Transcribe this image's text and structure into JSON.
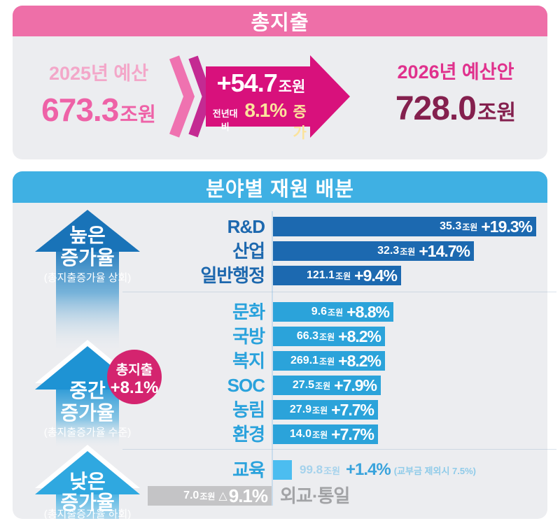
{
  "colors": {
    "pink_header": "#ee6fa8",
    "magenta_arrow": "#d8117c",
    "chevron_light_pink": "#ef72b0",
    "chevron_deep_magenta": "#c42a92",
    "budget_2025_label": "#f3a7c9",
    "budget_2025_value": "#ee62a7",
    "budget_2026_label": "#e0318d",
    "budget_2026_value": "#84204e",
    "highlight_yellow": "#fbe39c",
    "blue_header": "#3fb0e3",
    "bar_dark_blue": "#1c69b0",
    "bar_light_blue": "#2ba3da",
    "bar_sky_blue": "#4cbdf0",
    "bar_gray": "#c4c4c6",
    "badge_magenta": "#d4246f",
    "card_background": "#ecedf0"
  },
  "top_card": {
    "title": "총지출",
    "budget_2025": {
      "label": "2025년 예산",
      "value": "673.3",
      "unit": "조원"
    },
    "change": {
      "amount": "+54.7",
      "amount_unit": "조원",
      "prefix": "전년대비",
      "percent": "8.1%",
      "suffix": "증가"
    },
    "budget_2026": {
      "label": "2026년 예산안",
      "value": "728.0",
      "unit": "조원"
    }
  },
  "chart_card": {
    "title": "분야별 재원 배분",
    "badge": {
      "line1": "총지출",
      "line2": "+8.1%"
    },
    "side_labels": [
      {
        "line1": "높은",
        "line2": "증가율",
        "note": "(총지출증가율 상회)"
      },
      {
        "line1": "중간",
        "line2": "증가율",
        "note": "(총지출증가율 수준)"
      },
      {
        "line1": "낮은",
        "line2": "증가율",
        "note": "(총지출증가율 하회)"
      }
    ]
  },
  "chart_data": {
    "type": "bar",
    "orientation": "horizontal",
    "unit": "조원",
    "value_axis": "growth_percent_vs_previous_year",
    "groups": [
      {
        "label": "높은 증가율",
        "note": "(총지출증가율 상회)",
        "rows": [
          {
            "category": "R&D",
            "amount": "35.3",
            "growth_percent": 19.3,
            "growth_label": "+19.3%",
            "style": "dark"
          },
          {
            "category": "산업",
            "amount": "32.3",
            "growth_percent": 14.7,
            "growth_label": "+14.7%",
            "style": "dark"
          },
          {
            "category": "일반행정",
            "amount": "121.1",
            "growth_percent": 9.4,
            "growth_label": "+9.4%",
            "style": "dark"
          }
        ]
      },
      {
        "label": "중간 증가율",
        "note": "(총지출증가율 수준)",
        "rows": [
          {
            "category": "문화",
            "amount": "9.6",
            "growth_percent": 8.8,
            "growth_label": "+8.8%",
            "style": "light"
          },
          {
            "category": "국방",
            "amount": "66.3",
            "growth_percent": 8.2,
            "growth_label": "+8.2%",
            "style": "light"
          },
          {
            "category": "복지",
            "amount": "269.1",
            "growth_percent": 8.2,
            "growth_label": "+8.2%",
            "style": "light"
          },
          {
            "category": "SOC",
            "amount": "27.5",
            "growth_percent": 7.9,
            "growth_label": "+7.9%",
            "style": "light"
          },
          {
            "category": "농림",
            "amount": "27.9",
            "growth_percent": 7.7,
            "growth_label": "+7.7%",
            "style": "light"
          },
          {
            "category": "환경",
            "amount": "14.0",
            "growth_percent": 7.7,
            "growth_label": "+7.7%",
            "style": "light"
          }
        ]
      },
      {
        "label": "낮은 증가율",
        "note": "(총지출증가율 하회)",
        "rows": [
          {
            "category": "교육",
            "amount": "99.8",
            "growth_percent": 1.4,
            "growth_label": "+1.4%",
            "note": "(교부금 제외시 7.5%)",
            "style": "education"
          },
          {
            "category": "외교·통일",
            "amount": "7.0",
            "growth_percent": -9.1,
            "growth_label": "△9.1%",
            "style": "negative"
          }
        ]
      }
    ]
  }
}
